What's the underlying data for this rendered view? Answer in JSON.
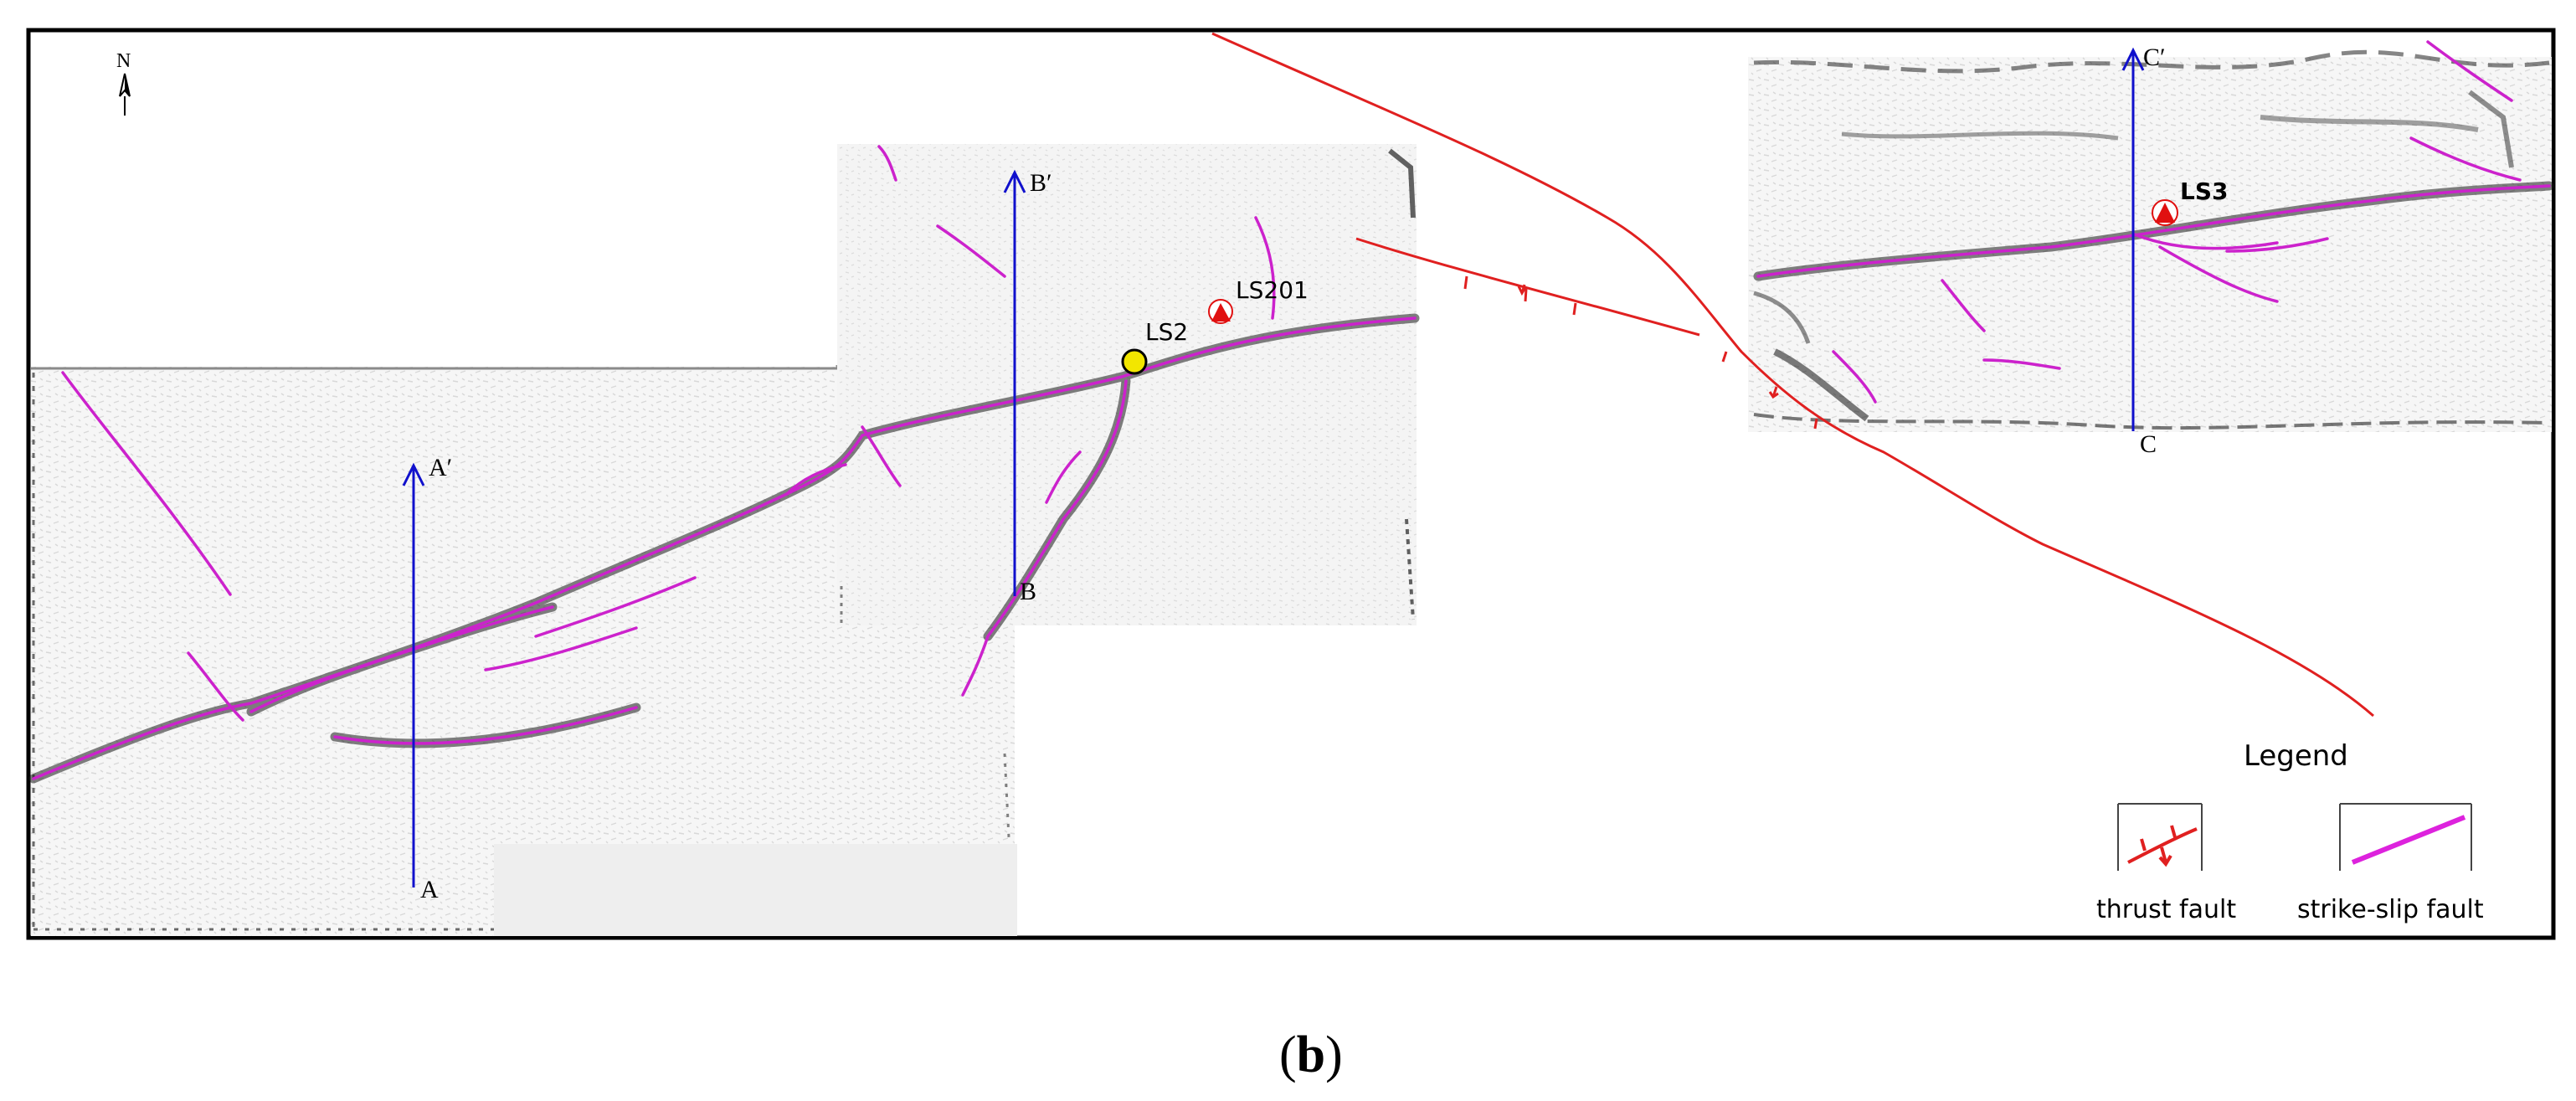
{
  "figure": {
    "panel_label": "(b)",
    "panel_letter": "b"
  },
  "north_arrow": {
    "label": "N"
  },
  "profiles": [
    {
      "start_label": "A",
      "end_label": "A′"
    },
    {
      "start_label": "B",
      "end_label": "B′"
    },
    {
      "start_label": "C",
      "end_label": "C′"
    }
  ],
  "wells": [
    {
      "label": "LS2",
      "marker": "yellow-circle"
    },
    {
      "label": "LS201",
      "marker": "red-triangle"
    },
    {
      "label": "LS3",
      "marker": "red-triangle"
    }
  ],
  "legend": {
    "title": "Legend",
    "items": [
      {
        "label": "thrust fault",
        "icon": "thrust-fault-icon"
      },
      {
        "label": "strike-slip fault",
        "icon": "strike-slip-fault-icon"
      }
    ]
  },
  "colors": {
    "thrust_fault": "#e02020",
    "strike_slip_fault": "#cc22cc",
    "profile_line": "#1010cc",
    "frame": "#000000",
    "well_ls2": "#f2e600",
    "well_triangle": "#e01010"
  }
}
